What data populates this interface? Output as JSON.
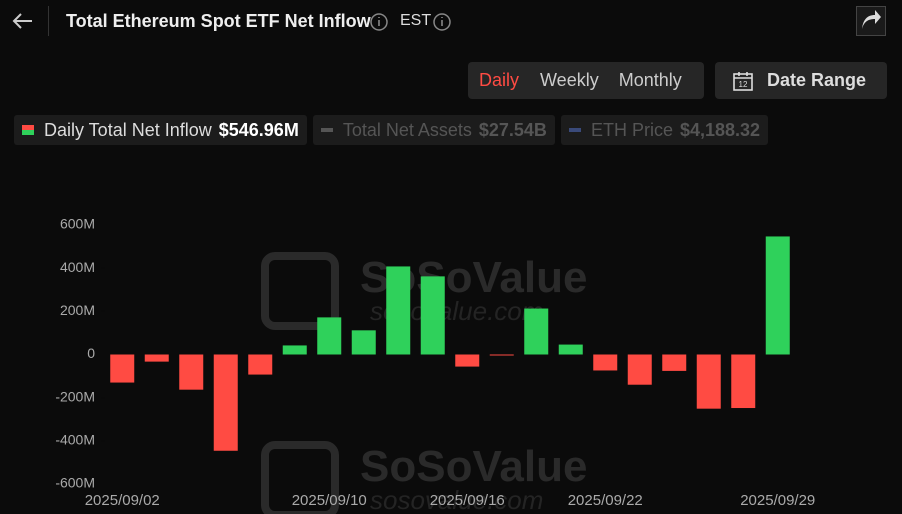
{
  "header": {
    "title": "Total Ethereum Spot ETF Net Inflow",
    "timezone": "EST"
  },
  "periods": [
    "Daily",
    "Weekly",
    "Monthly"
  ],
  "active_period": 0,
  "date_range": "Date Range",
  "legend": [
    {
      "name": "Daily Total Net Inflow",
      "value": "$546.96M"
    },
    {
      "name": "Total Net Assets",
      "value": "$27.54B"
    },
    {
      "name": "ETH Price",
      "value": "$4,188.32"
    }
  ],
  "watermark": {
    "brand": "SoSoValue",
    "site": "sosovalue.com"
  },
  "chart_data": {
    "type": "bar",
    "categories": [
      "2025/09/02",
      null,
      null,
      null,
      null,
      null,
      "2025/09/10",
      null,
      null,
      null,
      "2025/09/16",
      null,
      null,
      null,
      "2025/09/22",
      null,
      null,
      null,
      null,
      "2025/09/29"
    ],
    "values": [
      -130,
      -33,
      -163,
      -446,
      -93,
      42,
      172,
      112,
      408,
      362,
      -56,
      -1,
      213,
      46,
      -74,
      -140,
      -76,
      -251,
      -248,
      546.96
    ],
    "color": "#2fd15b",
    "negative_color": "#ff4b43",
    "ylim": [
      -600,
      600
    ],
    "yticks": [
      {
        "value": -600,
        "label": "-600M"
      },
      {
        "value": -400,
        "label": "-400M"
      },
      {
        "value": -200,
        "label": "-200M"
      },
      0,
      {
        "value": 200,
        "label": "200M"
      },
      {
        "value": 400,
        "label": "400M"
      },
      {
        "value": 600,
        "label": "600M"
      }
    ],
    "grid": false
  }
}
